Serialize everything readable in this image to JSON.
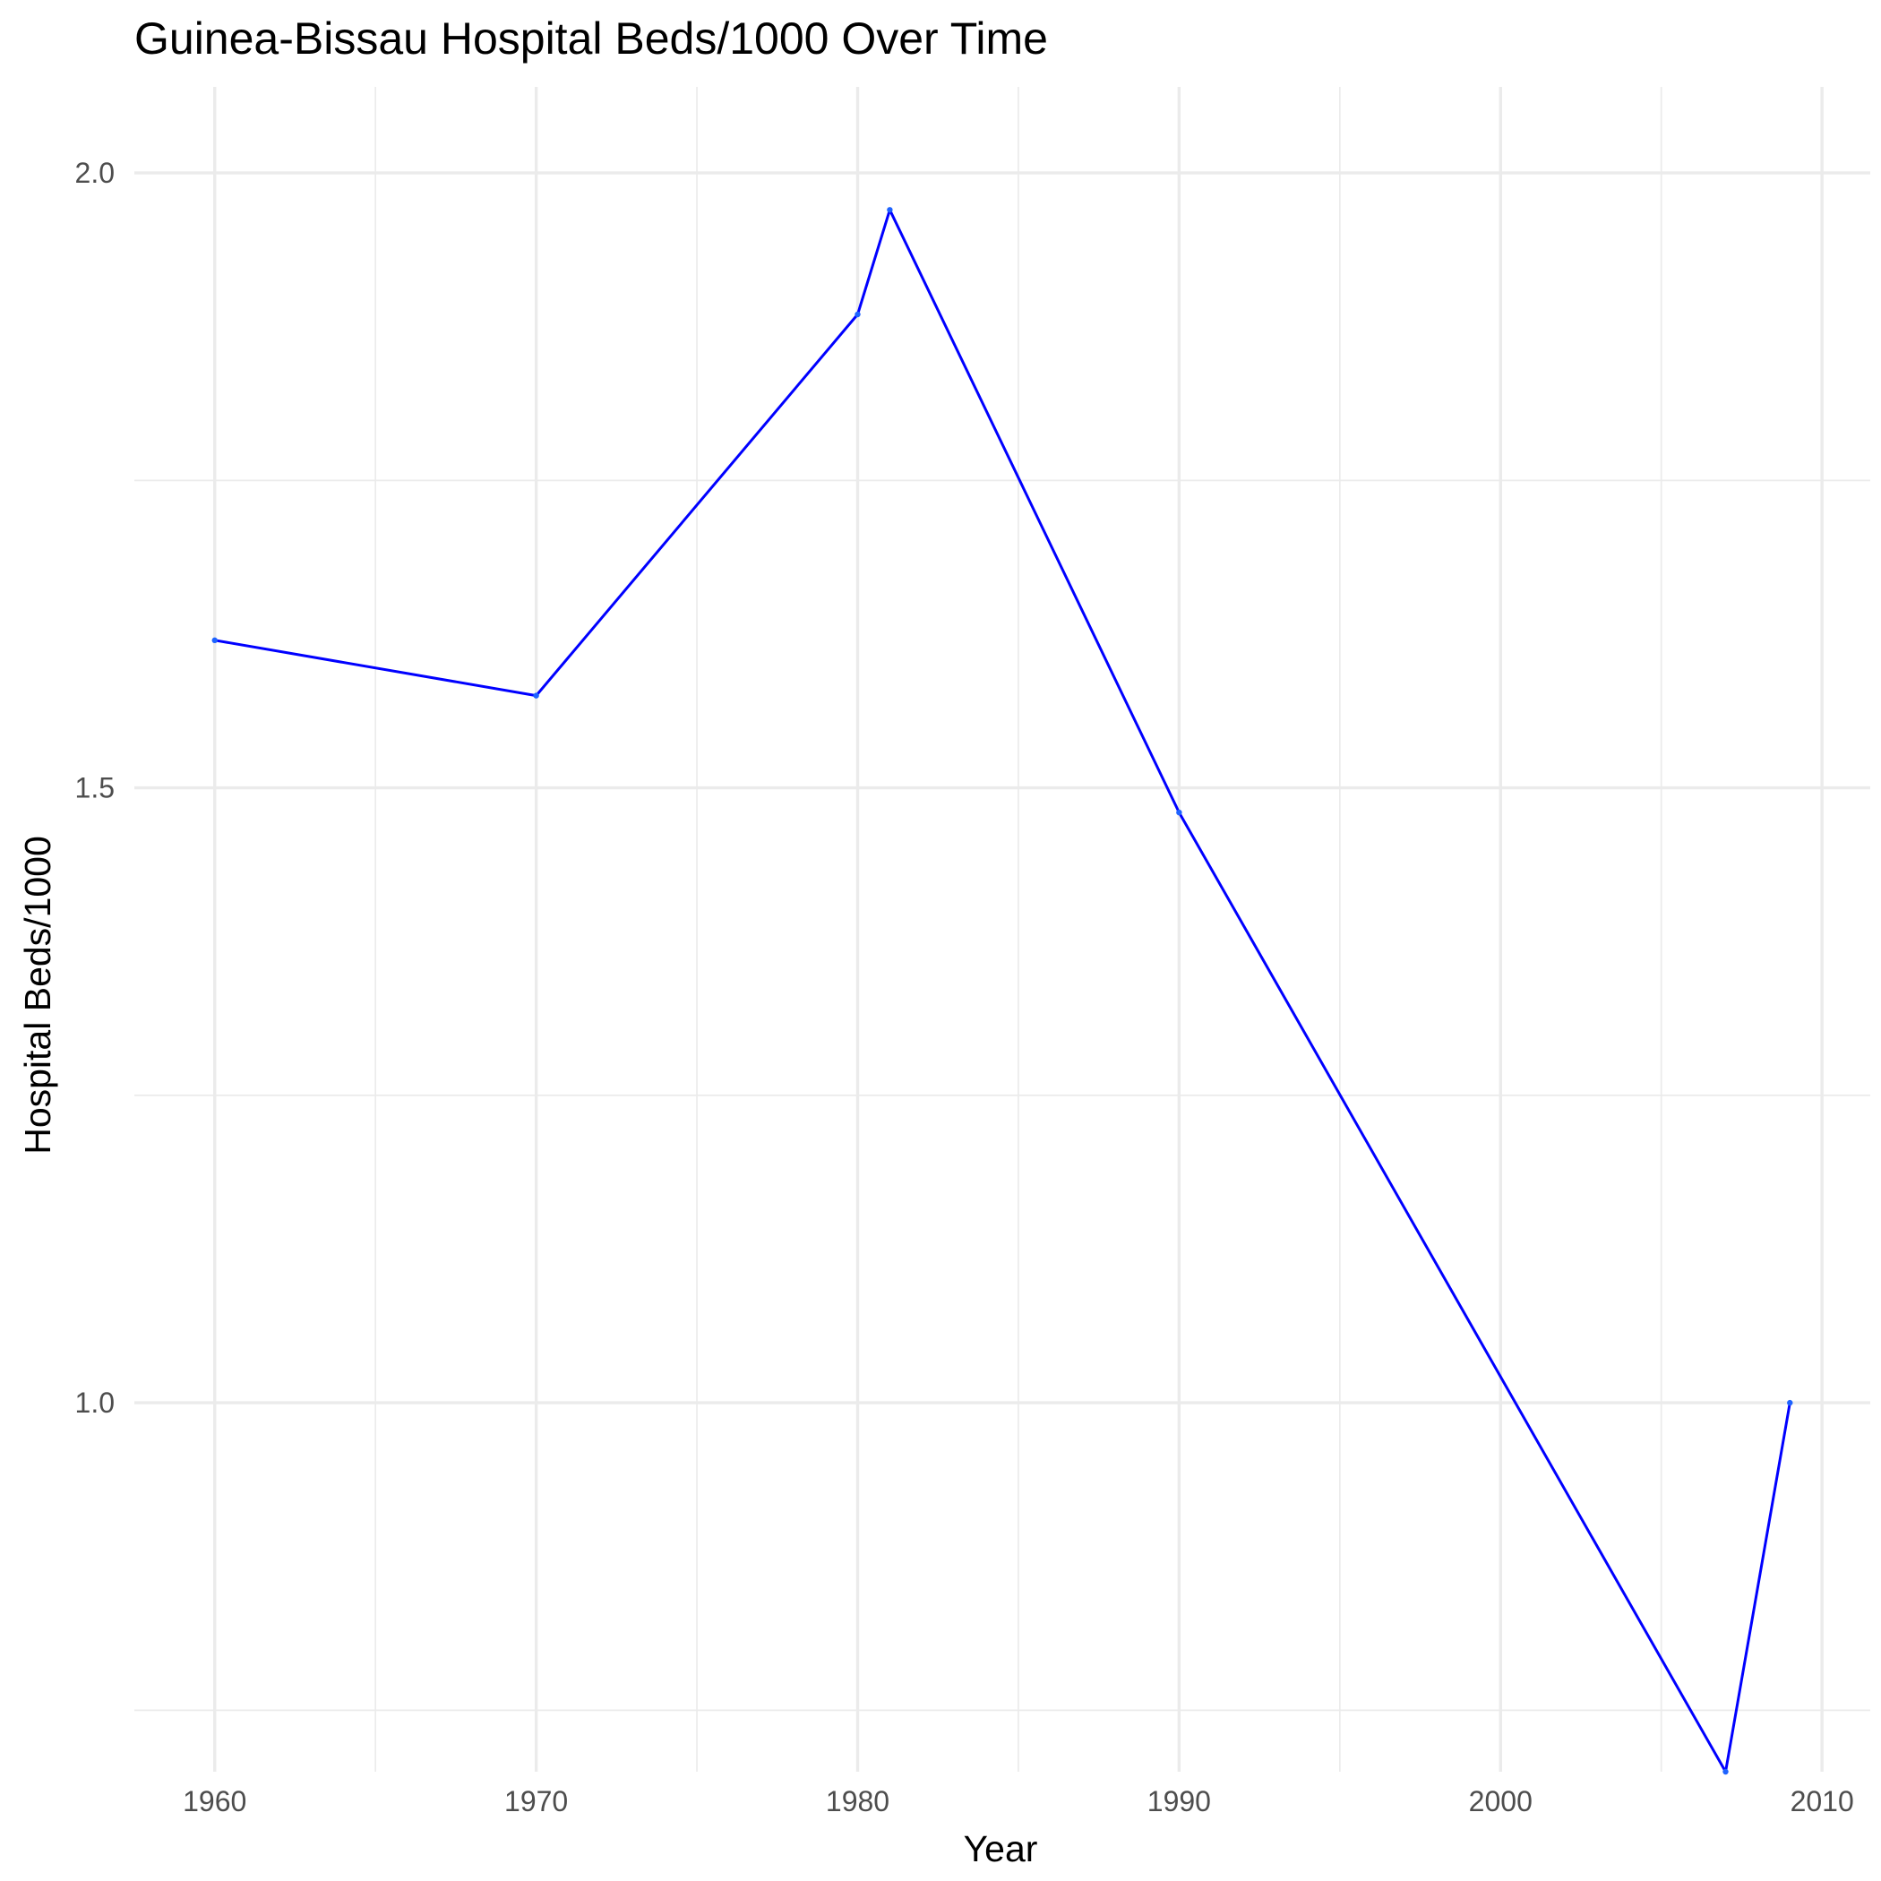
{
  "chart_data": {
    "type": "line",
    "title": "Guinea-Bissau Hospital Beds/1000 Over Time",
    "xlabel": "Year",
    "ylabel": "Hospital Beds/1000",
    "xlim": [
      1957.5,
      2011.5
    ],
    "ylim": [
      0.7,
      2.07
    ],
    "x_ticks": [
      1960,
      1970,
      1980,
      1990,
      2000,
      2010
    ],
    "x_minor_ticks": [
      1965,
      1975,
      1985,
      1995,
      2005
    ],
    "y_ticks": [
      1.0,
      1.5,
      2.0
    ],
    "y_tick_labels": [
      "1.0",
      "1.5",
      "2.0"
    ],
    "y_minor_ticks": [
      0.75,
      1.25,
      1.75
    ],
    "grid": true,
    "legend": "none",
    "series": [
      {
        "color": "#0000ff",
        "point_color": "#1e63ff",
        "x": [
          1960,
          1970,
          1980,
          1981,
          1990,
          2007,
          2009
        ],
        "y": [
          1.62,
          1.575,
          1.885,
          1.97,
          1.48,
          0.7,
          1.0
        ]
      }
    ]
  }
}
